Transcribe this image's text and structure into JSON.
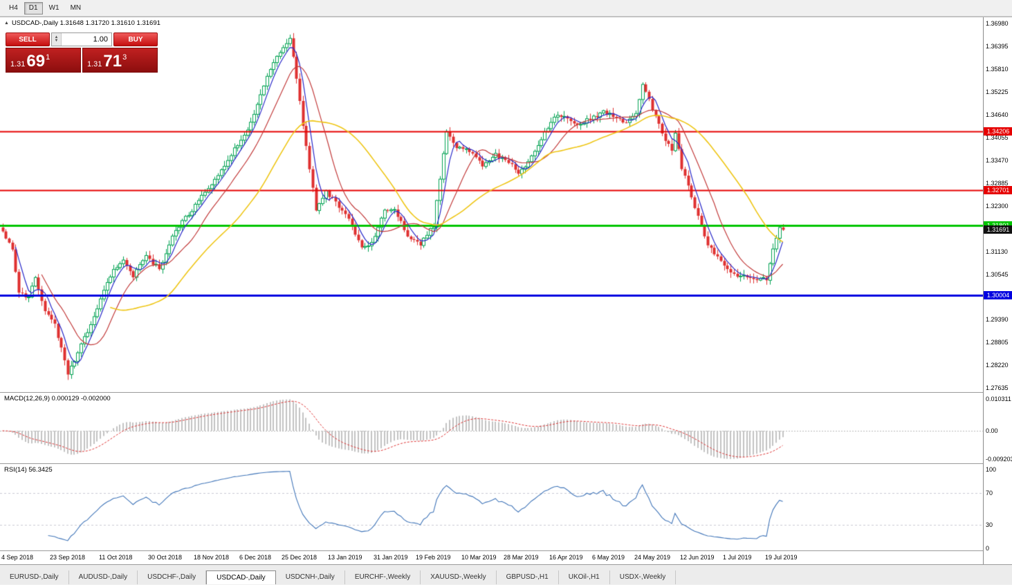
{
  "toolbar": {
    "timeframes": [
      {
        "label": "H4",
        "active": false
      },
      {
        "label": "D1",
        "active": true
      },
      {
        "label": "W1",
        "active": false
      },
      {
        "label": "MN",
        "active": false
      }
    ]
  },
  "chart": {
    "symbol_header": "USDCAD-,Daily 1.31648 1.31720 1.31610 1.31691",
    "trade_panel": {
      "sell_label": "SELL",
      "buy_label": "BUY",
      "volume": "1.00",
      "sell_price": {
        "small": "1.31",
        "big": "69",
        "sup": "1"
      },
      "buy_price": {
        "small": "1.31",
        "big": "71",
        "sup": "3"
      }
    }
  },
  "chart_data": {
    "type": "candlestick",
    "symbol": "USDCAD",
    "timeframe": "Daily",
    "ohlc": {
      "open": "1.31648",
      "high": "1.31720",
      "low": "1.31610",
      "close": "1.31691"
    },
    "candle_count": 240,
    "y_axis": {
      "range": [
        1.2753,
        1.3714
      ],
      "labels": [
        "1.36980",
        "1.36395",
        "1.35810",
        "1.35225",
        "1.34640",
        "1.34055",
        "1.33470",
        "1.32885",
        "1.32300",
        "1.31130",
        "1.30545",
        "1.29390",
        "1.28805",
        "1.28220",
        "1.27635"
      ]
    },
    "x_ticks": [
      {
        "label": "4 Sep 2018",
        "i": 0
      },
      {
        "label": "23 Sep 2018",
        "i": 15
      },
      {
        "label": "11 Oct 2018",
        "i": 30
      },
      {
        "label": "30 Oct 2018",
        "i": 45
      },
      {
        "label": "18 Nov 2018",
        "i": 59
      },
      {
        "label": "6 Dec 2018",
        "i": 73
      },
      {
        "label": "25 Dec 2018",
        "i": 86
      },
      {
        "label": "13 Jan 2019",
        "i": 100
      },
      {
        "label": "31 Jan 2019",
        "i": 114
      },
      {
        "label": "19 Feb 2019",
        "i": 127
      },
      {
        "label": "10 Mar 2019",
        "i": 141
      },
      {
        "label": "28 Mar 2019",
        "i": 154
      },
      {
        "label": "16 Apr 2019",
        "i": 168
      },
      {
        "label": "6 May 2019",
        "i": 181
      },
      {
        "label": "24 May 2019",
        "i": 194
      },
      {
        "label": "12 Jun 2019",
        "i": 208
      },
      {
        "label": "1 Jul 2019",
        "i": 221
      },
      {
        "label": "19 Jul 2019",
        "i": 234
      }
    ],
    "close_path": [
      [
        0,
        1.3165
      ],
      [
        3,
        1.312
      ],
      [
        5,
        1.301
      ],
      [
        8,
        1.2995
      ],
      [
        10,
        1.3045
      ],
      [
        13,
        1.2965
      ],
      [
        16,
        1.2925
      ],
      [
        18,
        1.2865
      ],
      [
        20,
        1.2795
      ],
      [
        23,
        1.2855
      ],
      [
        26,
        1.291
      ],
      [
        30,
        1.299
      ],
      [
        34,
        1.307
      ],
      [
        37,
        1.309
      ],
      [
        40,
        1.305
      ],
      [
        44,
        1.31
      ],
      [
        48,
        1.307
      ],
      [
        52,
        1.315
      ],
      [
        56,
        1.32
      ],
      [
        60,
        1.324
      ],
      [
        64,
        1.329
      ],
      [
        68,
        1.333
      ],
      [
        72,
        1.339
      ],
      [
        76,
        1.344
      ],
      [
        80,
        1.354
      ],
      [
        84,
        1.361
      ],
      [
        88,
        1.3655
      ],
      [
        90,
        1.356
      ],
      [
        93,
        1.338
      ],
      [
        96,
        1.322
      ],
      [
        99,
        1.3265
      ],
      [
        103,
        1.323
      ],
      [
        107,
        1.318
      ],
      [
        110,
        1.3125
      ],
      [
        113,
        1.3135
      ],
      [
        117,
        1.3215
      ],
      [
        120,
        1.322
      ],
      [
        124,
        1.3155
      ],
      [
        128,
        1.313
      ],
      [
        132,
        1.318
      ],
      [
        134,
        1.33
      ],
      [
        136,
        1.342
      ],
      [
        139,
        1.338
      ],
      [
        143,
        1.337
      ],
      [
        147,
        1.3335
      ],
      [
        151,
        1.336
      ],
      [
        155,
        1.3345
      ],
      [
        158,
        1.331
      ],
      [
        162,
        1.336
      ],
      [
        166,
        1.342
      ],
      [
        170,
        1.3465
      ],
      [
        173,
        1.346
      ],
      [
        176,
        1.3435
      ],
      [
        180,
        1.3455
      ],
      [
        184,
        1.347
      ],
      [
        188,
        1.346
      ],
      [
        191,
        1.344
      ],
      [
        194,
        1.347
      ],
      [
        196,
        1.354
      ],
      [
        199,
        1.348
      ],
      [
        203,
        1.34
      ],
      [
        205,
        1.337
      ],
      [
        206,
        1.342
      ],
      [
        208,
        1.333
      ],
      [
        212,
        1.323
      ],
      [
        216,
        1.313
      ],
      [
        220,
        1.3085
      ],
      [
        224,
        1.3055
      ],
      [
        228,
        1.305
      ],
      [
        231,
        1.304
      ],
      [
        234,
        1.3045
      ],
      [
        236,
        1.312
      ],
      [
        238,
        1.3175
      ],
      [
        239,
        1.3169
      ]
    ],
    "levels": [
      {
        "value": 1.34206,
        "label": "1.34206",
        "color": "#e60000",
        "width": 2
      },
      {
        "value": 1.32701,
        "label": "1.32701",
        "color": "#e60000",
        "width": 2
      },
      {
        "value": 1.31801,
        "label": "1.31801",
        "color": "#00c400",
        "width": 3
      },
      {
        "value": 1.30004,
        "label": "1.30004",
        "color": "#0000e0",
        "width": 3
      }
    ],
    "current_price": {
      "value": 1.31691,
      "label": "1.31691",
      "badge_color": "#111111"
    },
    "moving_averages": [
      {
        "period": 5,
        "color": "#2727c8",
        "width": 1.2
      },
      {
        "period": 13,
        "color": "#c23b3b",
        "width": 1.2
      },
      {
        "period": 34,
        "color": "#eec514",
        "width": 1.6
      }
    ],
    "candle_colors": {
      "bull_stroke": "#00a151",
      "bull_fill": "#ffffff",
      "bear": "#df3030"
    },
    "indicators": {
      "macd": {
        "title": "MACD(12,26,9) 0.000129 -0.002000",
        "params": [
          12,
          26,
          9
        ],
        "range": [
          -0.009203,
          0.010311
        ],
        "scale_labels": [
          "0.010311",
          "0.00",
          "-0.009203"
        ],
        "histogram_color": "#c2c2c2",
        "signal_color": "#dd3333"
      },
      "rsi": {
        "title": "RSI(14) 56.3425",
        "period": 14,
        "scale_labels": [
          "100",
          "70",
          "30",
          "0"
        ],
        "levels": [
          70,
          30
        ],
        "line_color": "#3f74b8"
      }
    }
  },
  "tabs": [
    {
      "label": "EURUSD-,Daily",
      "active": false
    },
    {
      "label": "AUDUSD-,Daily",
      "active": false
    },
    {
      "label": "USDCHF-,Daily",
      "active": false
    },
    {
      "label": "USDCAD-,Daily",
      "active": true
    },
    {
      "label": "USDCNH-,Daily",
      "active": false
    },
    {
      "label": "EURCHF-,Weekly",
      "active": false
    },
    {
      "label": "XAUUSD-,Weekly",
      "active": false
    },
    {
      "label": "GBPUSD-,H1",
      "active": false
    },
    {
      "label": "UKOil-,H1",
      "active": false
    },
    {
      "label": "USDX-,Weekly",
      "active": false
    }
  ]
}
